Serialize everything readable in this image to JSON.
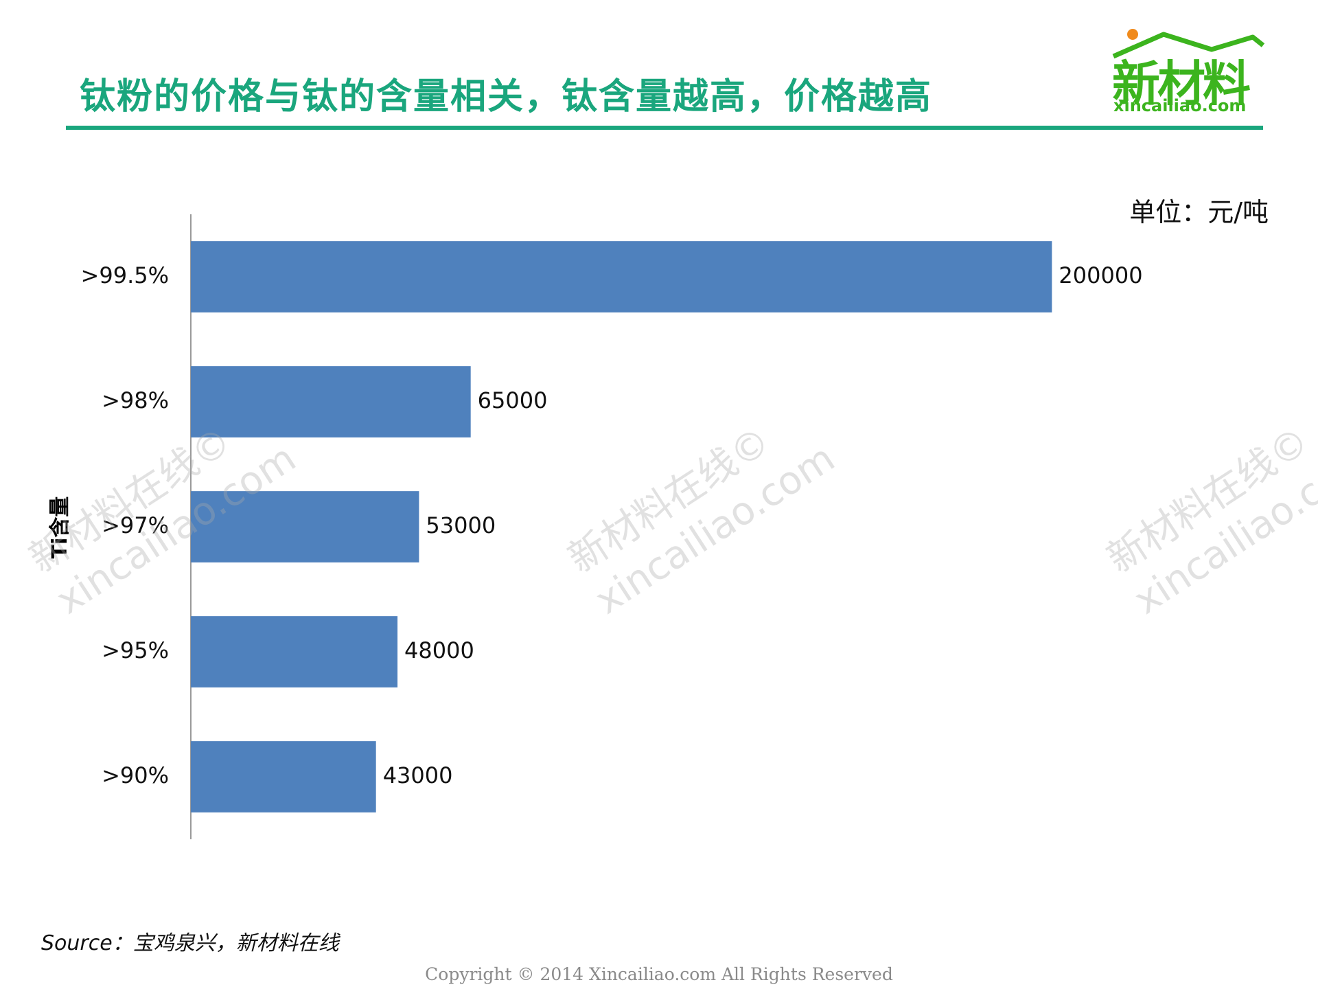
{
  "header": {
    "title": "钛粉的价格与钛的含量相关，钛含量越高，价格越高",
    "logo_text": "新材料",
    "logo_url": "xincailiao.com"
  },
  "colors": {
    "title_green": "#1aa67d",
    "logo_green": "#3cb41e",
    "logo_dot": "#f08a1c",
    "bar_blue": "#4f81bd"
  },
  "watermark": {
    "line1": "新材料在线©",
    "line2": "xincailiao.com"
  },
  "chart_data": {
    "type": "bar",
    "orientation": "horizontal",
    "categories": [
      ">99.5%",
      ">98%",
      ">97%",
      ">95%",
      ">90%"
    ],
    "values": [
      200000,
      65000,
      53000,
      48000,
      43000
    ],
    "data_labels": [
      "200000",
      "65000",
      "53000",
      "48000",
      "43000"
    ],
    "ylabel": "Ti含量",
    "unit_label": "单位：元/吨",
    "xlim": [
      0,
      250000
    ],
    "grid": false,
    "legend": "none"
  },
  "footer": {
    "source": "Source：宝鸡泉兴，新材料在线",
    "copyright": "Copyright © 2014   Xincailiao.com   All Rights Reserved"
  }
}
